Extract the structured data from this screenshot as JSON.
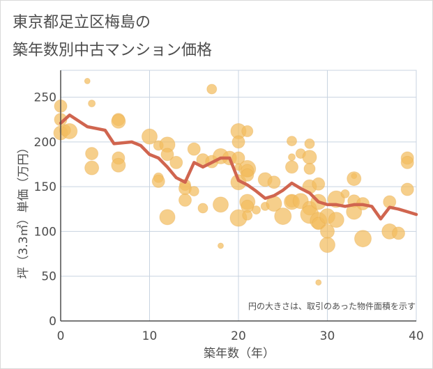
{
  "title_lines": [
    "東京都足立区梅島の",
    "築年数別中古マンション価格"
  ],
  "chart_data": {
    "type": "scatter",
    "title": "東京都足立区梅島の築年数別中古マンション価格",
    "xlabel": "築年数（年）",
    "ylabel": "坪（3.3㎡）単価（万円）",
    "xlim": [
      0,
      40
    ],
    "ylim": [
      0,
      280
    ],
    "xticks": [
      0,
      10,
      20,
      30,
      40
    ],
    "yticks": [
      0,
      50,
      100,
      150,
      200,
      250
    ],
    "grid": true,
    "note": "円の大きさは、取引のあった物件面積を示す",
    "colors": {
      "bubble": "#f2bd5e",
      "line": "#d0654f",
      "grid": "#c8d3e0",
      "axis": "#4d4d4d"
    },
    "scatter_points": [
      {
        "x": 0,
        "y": 240,
        "s": 9
      },
      {
        "x": 0,
        "y": 225,
        "s": 9
      },
      {
        "x": 0,
        "y": 210,
        "s": 10
      },
      {
        "x": 0.5,
        "y": 213,
        "s": 8
      },
      {
        "x": 1,
        "y": 212,
        "s": 11
      },
      {
        "x": 3,
        "y": 268,
        "s": 4
      },
      {
        "x": 3.5,
        "y": 243,
        "s": 5
      },
      {
        "x": 3.5,
        "y": 187,
        "s": 9
      },
      {
        "x": 3.5,
        "y": 171,
        "s": 10
      },
      {
        "x": 6.5,
        "y": 225,
        "s": 9
      },
      {
        "x": 6.5,
        "y": 223,
        "s": 10
      },
      {
        "x": 6.5,
        "y": 182,
        "s": 9
      },
      {
        "x": 6.5,
        "y": 174,
        "s": 10
      },
      {
        "x": 10,
        "y": 206,
        "s": 11
      },
      {
        "x": 11,
        "y": 196,
        "s": 7
      },
      {
        "x": 11,
        "y": 160,
        "s": 7
      },
      {
        "x": 11,
        "y": 156,
        "s": 9
      },
      {
        "x": 12,
        "y": 197,
        "s": 11
      },
      {
        "x": 12,
        "y": 186,
        "s": 9
      },
      {
        "x": 12,
        "y": 116,
        "s": 11
      },
      {
        "x": 13,
        "y": 177,
        "s": 9
      },
      {
        "x": 14,
        "y": 152,
        "s": 8
      },
      {
        "x": 14,
        "y": 148,
        "s": 9
      },
      {
        "x": 14,
        "y": 135,
        "s": 9
      },
      {
        "x": 15,
        "y": 192,
        "s": 9
      },
      {
        "x": 15,
        "y": 145,
        "s": 7
      },
      {
        "x": 16,
        "y": 180,
        "s": 9
      },
      {
        "x": 16,
        "y": 126,
        "s": 7
      },
      {
        "x": 17,
        "y": 259,
        "s": 7
      },
      {
        "x": 17,
        "y": 178,
        "s": 9
      },
      {
        "x": 18,
        "y": 184,
        "s": 11
      },
      {
        "x": 18,
        "y": 130,
        "s": 11
      },
      {
        "x": 18,
        "y": 84,
        "s": 4
      },
      {
        "x": 19,
        "y": 182,
        "s": 10
      },
      {
        "x": 20,
        "y": 212,
        "s": 11
      },
      {
        "x": 20,
        "y": 200,
        "s": 9
      },
      {
        "x": 20,
        "y": 182,
        "s": 9
      },
      {
        "x": 20,
        "y": 172,
        "s": 5
      },
      {
        "x": 20,
        "y": 155,
        "s": 11
      },
      {
        "x": 20,
        "y": 115,
        "s": 12
      },
      {
        "x": 21,
        "y": 212,
        "s": 8
      },
      {
        "x": 21,
        "y": 170,
        "s": 12
      },
      {
        "x": 21,
        "y": 168,
        "s": 9
      },
      {
        "x": 21,
        "y": 163,
        "s": 9
      },
      {
        "x": 21,
        "y": 133,
        "s": 11
      },
      {
        "x": 21,
        "y": 128,
        "s": 9
      },
      {
        "x": 21,
        "y": 118,
        "s": 7
      },
      {
        "x": 22,
        "y": 124,
        "s": 6
      },
      {
        "x": 23,
        "y": 158,
        "s": 10
      },
      {
        "x": 23,
        "y": 128,
        "s": 6
      },
      {
        "x": 24,
        "y": 155,
        "s": 9
      },
      {
        "x": 24,
        "y": 131,
        "s": 11
      },
      {
        "x": 25,
        "y": 117,
        "s": 12
      },
      {
        "x": 26,
        "y": 201,
        "s": 7
      },
      {
        "x": 26,
        "y": 183,
        "s": 5
      },
      {
        "x": 26,
        "y": 172,
        "s": 9
      },
      {
        "x": 26,
        "y": 134,
        "s": 9
      },
      {
        "x": 26,
        "y": 133,
        "s": 11
      },
      {
        "x": 27,
        "y": 187,
        "s": 7
      },
      {
        "x": 27,
        "y": 134,
        "s": 11
      },
      {
        "x": 28,
        "y": 198,
        "s": 7
      },
      {
        "x": 28,
        "y": 183,
        "s": 10
      },
      {
        "x": 28,
        "y": 170,
        "s": 8
      },
      {
        "x": 28,
        "y": 150,
        "s": 10
      },
      {
        "x": 28,
        "y": 126,
        "s": 10
      },
      {
        "x": 28,
        "y": 119,
        "s": 13
      },
      {
        "x": 29,
        "y": 153,
        "s": 9
      },
      {
        "x": 29,
        "y": 133,
        "s": 11
      },
      {
        "x": 29,
        "y": 112,
        "s": 12
      },
      {
        "x": 29,
        "y": 109,
        "s": 9
      },
      {
        "x": 29,
        "y": 43,
        "s": 4
      },
      {
        "x": 30,
        "y": 117,
        "s": 11
      },
      {
        "x": 30,
        "y": 100,
        "s": 10
      },
      {
        "x": 30,
        "y": 85,
        "s": 11
      },
      {
        "x": 31,
        "y": 136,
        "s": 12
      },
      {
        "x": 31,
        "y": 113,
        "s": 11
      },
      {
        "x": 32,
        "y": 142,
        "s": 6
      },
      {
        "x": 33,
        "y": 162,
        "s": 4
      },
      {
        "x": 33,
        "y": 159,
        "s": 10
      },
      {
        "x": 33,
        "y": 134,
        "s": 9
      },
      {
        "x": 33,
        "y": 122,
        "s": 11
      },
      {
        "x": 34,
        "y": 131,
        "s": 9
      },
      {
        "x": 34,
        "y": 92,
        "s": 12
      },
      {
        "x": 37,
        "y": 133,
        "s": 9
      },
      {
        "x": 37,
        "y": 100,
        "s": 11
      },
      {
        "x": 38,
        "y": 98,
        "s": 9
      },
      {
        "x": 39,
        "y": 182,
        "s": 9
      },
      {
        "x": 39,
        "y": 177,
        "s": 9
      },
      {
        "x": 39,
        "y": 147,
        "s": 9
      }
    ],
    "average_line": [
      {
        "x": 0,
        "y": 221
      },
      {
        "x": 1,
        "y": 230
      },
      {
        "x": 3,
        "y": 217
      },
      {
        "x": 5,
        "y": 213
      },
      {
        "x": 6,
        "y": 198
      },
      {
        "x": 8,
        "y": 200
      },
      {
        "x": 9,
        "y": 196
      },
      {
        "x": 10,
        "y": 186
      },
      {
        "x": 11,
        "y": 182
      },
      {
        "x": 12,
        "y": 172
      },
      {
        "x": 13,
        "y": 160
      },
      {
        "x": 14,
        "y": 155
      },
      {
        "x": 15,
        "y": 177
      },
      {
        "x": 16,
        "y": 172
      },
      {
        "x": 18,
        "y": 182
      },
      {
        "x": 19,
        "y": 182
      },
      {
        "x": 20,
        "y": 157
      },
      {
        "x": 21,
        "y": 152
      },
      {
        "x": 22,
        "y": 145
      },
      {
        "x": 23,
        "y": 137
      },
      {
        "x": 24,
        "y": 140
      },
      {
        "x": 25,
        "y": 146
      },
      {
        "x": 26,
        "y": 154
      },
      {
        "x": 27,
        "y": 148
      },
      {
        "x": 28,
        "y": 143
      },
      {
        "x": 29,
        "y": 133
      },
      {
        "x": 30,
        "y": 130
      },
      {
        "x": 31,
        "y": 130
      },
      {
        "x": 32,
        "y": 128
      },
      {
        "x": 33,
        "y": 130
      },
      {
        "x": 34,
        "y": 130
      },
      {
        "x": 35,
        "y": 128
      },
      {
        "x": 36,
        "y": 114
      },
      {
        "x": 37,
        "y": 127
      },
      {
        "x": 38,
        "y": 125
      },
      {
        "x": 39,
        "y": 122
      },
      {
        "x": 40,
        "y": 119
      }
    ]
  }
}
